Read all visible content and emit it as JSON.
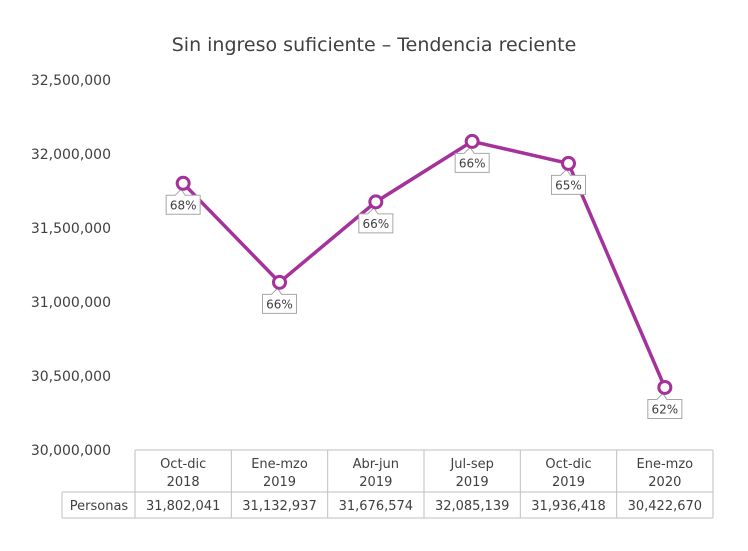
{
  "chart_data": {
    "type": "line",
    "title": "Sin ingreso suficiente – Tendencia reciente",
    "categories": [
      [
        "Oct-dic",
        "2018"
      ],
      [
        "Ene-mzo",
        "2019"
      ],
      [
        "Abr-jun",
        "2019"
      ],
      [
        "Jul-sep",
        "2019"
      ],
      [
        "Oct-dic",
        "2019"
      ],
      [
        "Ene-mzo",
        "2020"
      ]
    ],
    "series": [
      {
        "name": "Personas",
        "values": [
          31802041,
          31132937,
          31676574,
          32085139,
          31936418,
          30422670
        ],
        "value_labels": [
          "31,802,041",
          "31,132,937",
          "31,676,574",
          "32,085,139",
          "31,936,418",
          "30,422,670"
        ],
        "data_labels": [
          "68%",
          "66%",
          "66%",
          "66%",
          "65%",
          "62%"
        ],
        "color": "#a5329b"
      }
    ],
    "ylim": [
      30000000,
      32500000
    ],
    "yticks": [
      30000000,
      30500000,
      31000000,
      31500000,
      32000000,
      32500000
    ],
    "ytick_labels": [
      "30,000,000",
      "30,500,000",
      "31,000,000",
      "31,500,000",
      "32,000,000",
      "32,500,000"
    ],
    "grid": false,
    "legend": "data-table"
  }
}
